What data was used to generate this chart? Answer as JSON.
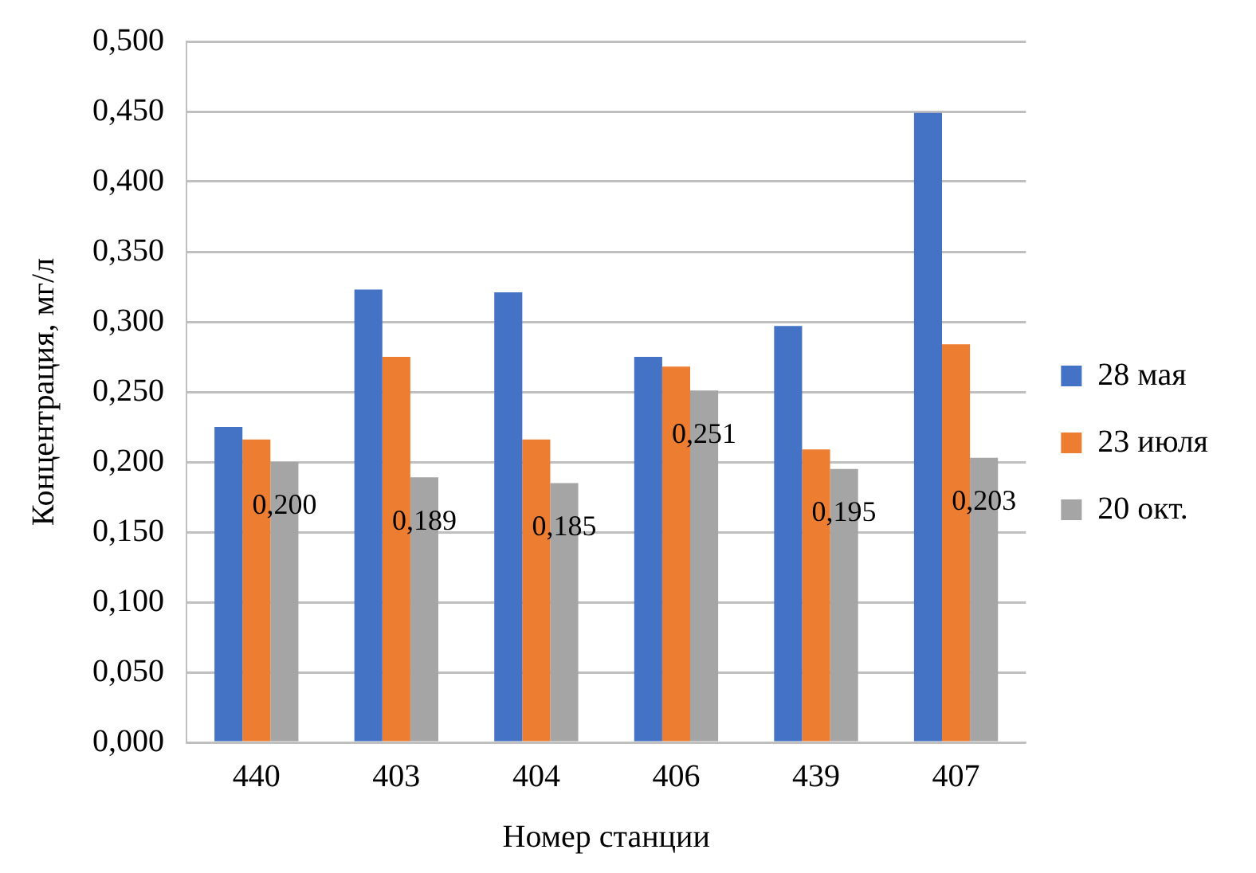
{
  "chart_data": {
    "type": "bar",
    "xlabel": "Номер станции",
    "ylabel": "Концентрация, мг/л",
    "categories": [
      "440",
      "403",
      "404",
      "406",
      "439",
      "407"
    ],
    "series": [
      {
        "name": "28 мая",
        "color": "#4472c4",
        "values": [
          0.225,
          0.323,
          0.321,
          0.275,
          0.297,
          0.449
        ]
      },
      {
        "name": "23 июля",
        "color": "#ed7d31",
        "values": [
          0.216,
          0.275,
          0.216,
          0.268,
          0.209,
          0.284
        ]
      },
      {
        "name": "20 окт.",
        "color": "#a5a5a5",
        "values": [
          0.2,
          0.189,
          0.185,
          0.251,
          0.195,
          0.203
        ],
        "value_labels": [
          "0,200",
          "0,189",
          "0,185",
          "0,251",
          "0,195",
          "0,203"
        ]
      }
    ],
    "ylim": [
      0,
      0.5
    ],
    "yticks": [
      {
        "value": 0,
        "label": "0,000"
      },
      {
        "value": 0.05,
        "label": "0,050"
      },
      {
        "value": 0.1,
        "label": "0,100"
      },
      {
        "value": 0.15,
        "label": "0,150"
      },
      {
        "value": 0.2,
        "label": "0,200"
      },
      {
        "value": 0.25,
        "label": "0,250"
      },
      {
        "value": 0.3,
        "label": "0,300"
      },
      {
        "value": 0.35,
        "label": "0,350"
      },
      {
        "value": 0.4,
        "label": "0,400"
      },
      {
        "value": 0.45,
        "label": "0,450"
      },
      {
        "value": 0.5,
        "label": "0,500"
      }
    ],
    "grid": "y",
    "legend": "right"
  }
}
